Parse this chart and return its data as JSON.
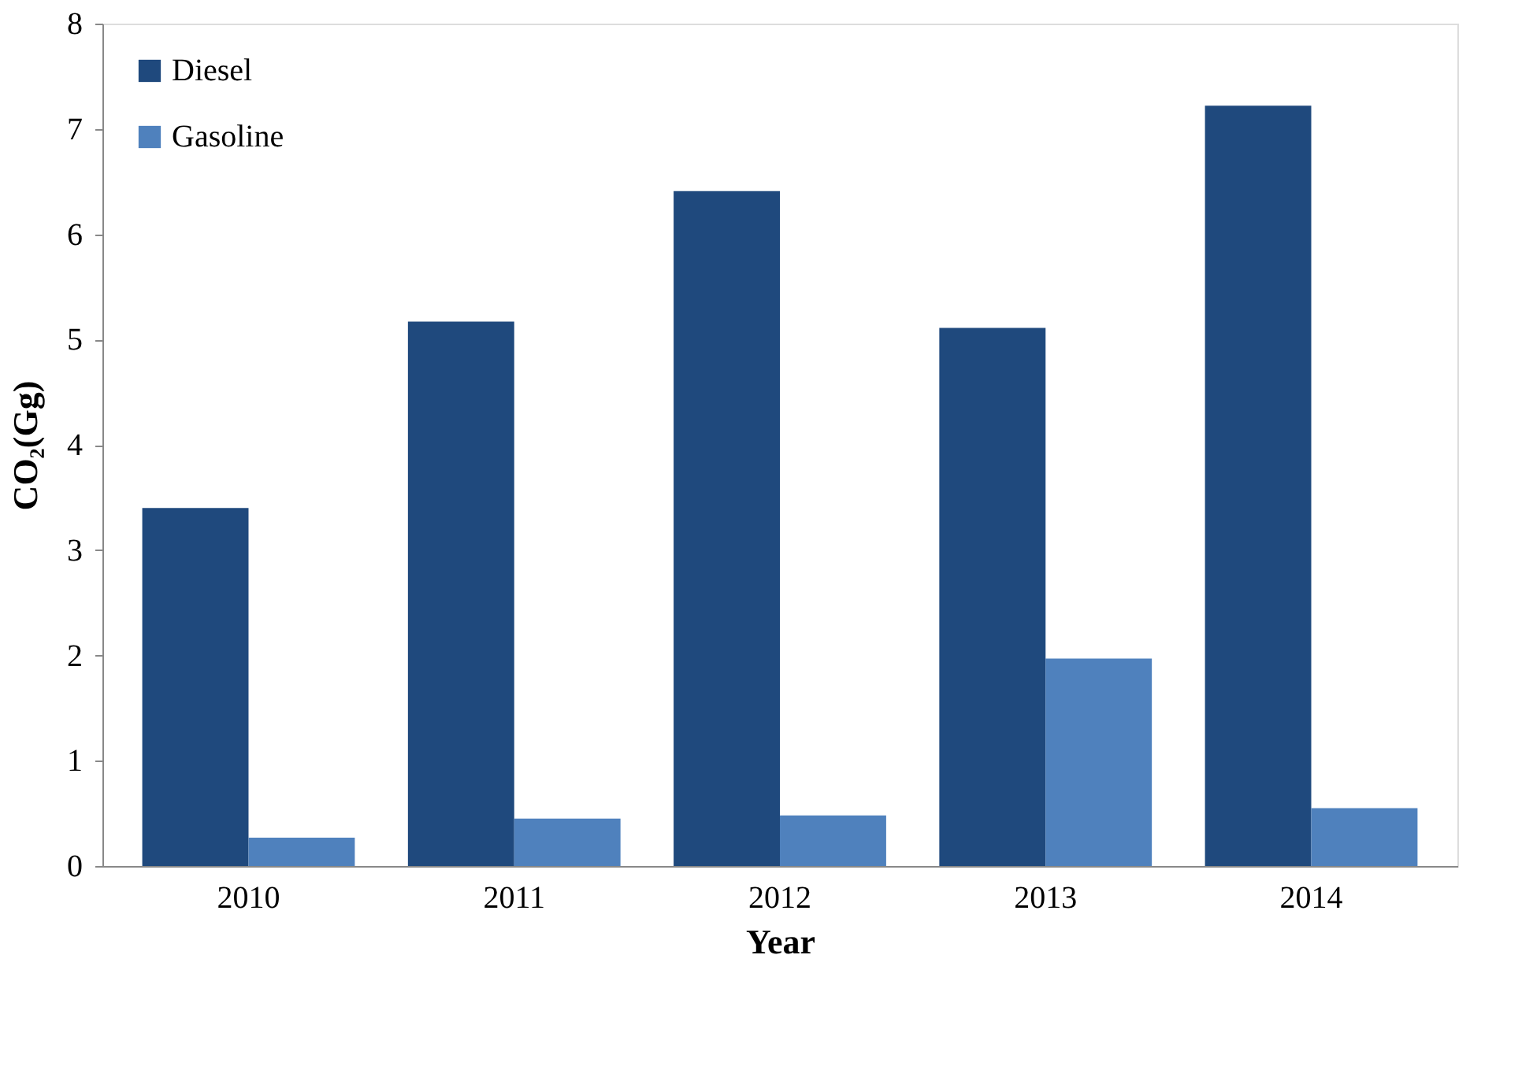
{
  "chart_data": {
    "type": "bar",
    "xlabel": "Year",
    "ylabel": "CO₂(Gg)",
    "categories": [
      "2010",
      "2011",
      "2012",
      "2013",
      "2014"
    ],
    "series": [
      {
        "name": "Diesel",
        "color": "#1f497d",
        "values": [
          3.4,
          5.17,
          6.41,
          5.11,
          7.22
        ]
      },
      {
        "name": "Gasoline",
        "color": "#4f81bd",
        "values": [
          0.27,
          0.45,
          0.48,
          1.97,
          0.55
        ]
      }
    ],
    "ylim": [
      0,
      8
    ],
    "yticks": [
      0,
      1,
      2,
      3,
      4,
      5,
      6,
      7,
      8
    ],
    "grid": false,
    "legend": "top left"
  }
}
